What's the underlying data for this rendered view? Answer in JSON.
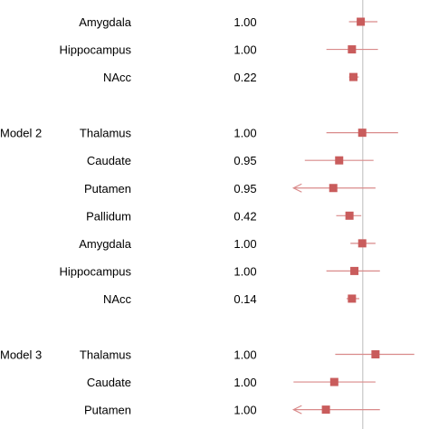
{
  "chart_data": {
    "type": "forest",
    "colors": {
      "marker": "#c95c5c",
      "ci_line": "#d98a8a",
      "reference_line": "#cccccc",
      "text": "#000000"
    },
    "reference_line": "vertical",
    "xlim": [
      -1.6,
      1.35
    ],
    "groups": [
      {
        "label": "",
        "rows": [
          {
            "label": "Amygdala",
            "value": "1.00",
            "estimate": -0.04,
            "lower": -0.28,
            "upper": 0.3,
            "arrow_left": false
          },
          {
            "label": "Hippocampus",
            "value": "1.00",
            "estimate": -0.22,
            "lower": -0.74,
            "upper": 0.31,
            "arrow_left": false
          },
          {
            "label": "NAcc",
            "value": "0.22",
            "estimate": -0.19,
            "lower": -0.28,
            "upper": -0.08,
            "arrow_left": false
          }
        ]
      },
      {
        "label": "Model 2",
        "rows": [
          {
            "label": "Thalamus",
            "value": "1.00",
            "estimate": -0.01,
            "lower": -0.74,
            "upper": 0.72,
            "arrow_left": false
          },
          {
            "label": "Caudate",
            "value": "0.95",
            "estimate": -0.48,
            "lower": -1.18,
            "upper": 0.22,
            "arrow_left": false
          },
          {
            "label": "Putamen",
            "value": "0.95",
            "estimate": -0.6,
            "lower": -1.41,
            "upper": 0.26,
            "arrow_left": true
          },
          {
            "label": "Pallidum",
            "value": "0.42",
            "estimate": -0.27,
            "lower": -0.54,
            "upper": -0.03,
            "arrow_left": false
          },
          {
            "label": "Amygdala",
            "value": "1.00",
            "estimate": -0.01,
            "lower": -0.25,
            "upper": 0.26,
            "arrow_left": false
          },
          {
            "label": "Hippocampus",
            "value": "1.00",
            "estimate": -0.17,
            "lower": -0.74,
            "upper": 0.35,
            "arrow_left": false
          },
          {
            "label": "NAcc",
            "value": "0.14",
            "estimate": -0.22,
            "lower": -0.33,
            "upper": -0.07,
            "arrow_left": false
          }
        ]
      },
      {
        "label": "Model 3",
        "rows": [
          {
            "label": "Thalamus",
            "value": "1.00",
            "estimate": 0.26,
            "lower": -0.56,
            "upper": 1.05,
            "arrow_left": false
          },
          {
            "label": "Caudate",
            "value": "1.00",
            "estimate": -0.58,
            "lower": -1.41,
            "upper": 0.26,
            "arrow_left": false
          },
          {
            "label": "Putamen",
            "value": "1.00",
            "estimate": -0.75,
            "lower": -1.41,
            "upper": 0.35,
            "arrow_left": true
          }
        ]
      }
    ]
  }
}
